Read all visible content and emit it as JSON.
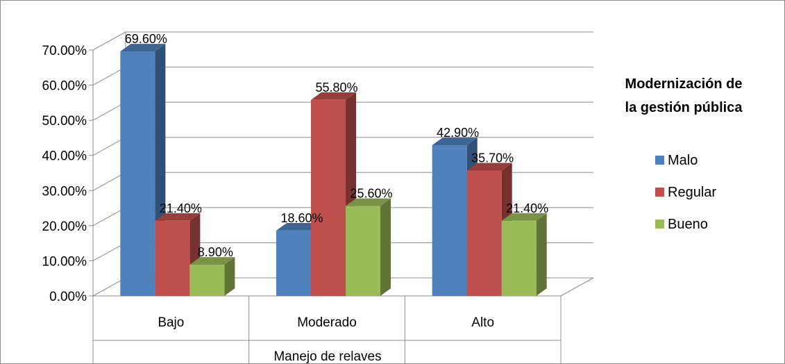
{
  "chart_data": {
    "type": "bar",
    "title": "",
    "xlabel": "Manejo de relaves",
    "ylabel": "",
    "ylim": [
      0,
      70
    ],
    "yticks": [
      "0.00%",
      "10.00%",
      "20.00%",
      "30.00%",
      "40.00%",
      "50.00%",
      "60.00%",
      "70.00%"
    ],
    "categories": [
      "Bajo",
      "Moderado",
      "Alto"
    ],
    "series": [
      {
        "name": "Malo",
        "values": [
          69.6,
          18.6,
          42.9
        ],
        "labels": [
          "69.60%",
          "18.60%",
          "42.90%"
        ],
        "color": "#4f81bd"
      },
      {
        "name": "Regular",
        "values": [
          21.4,
          55.8,
          35.7
        ],
        "labels": [
          "21.40%",
          "55.80%",
          "35.70%"
        ],
        "color": "#c0504d"
      },
      {
        "name": "Bueno",
        "values": [
          8.9,
          25.6,
          21.4
        ],
        "labels": [
          "8.90%",
          "25.60%",
          "21.40%"
        ],
        "color": "#9bbb59"
      }
    ],
    "legend": {
      "title_line1": "Modernización de",
      "title_line2": "la gestión pública",
      "placement": "right"
    },
    "grid": true,
    "style": "3d-clustered-column"
  }
}
